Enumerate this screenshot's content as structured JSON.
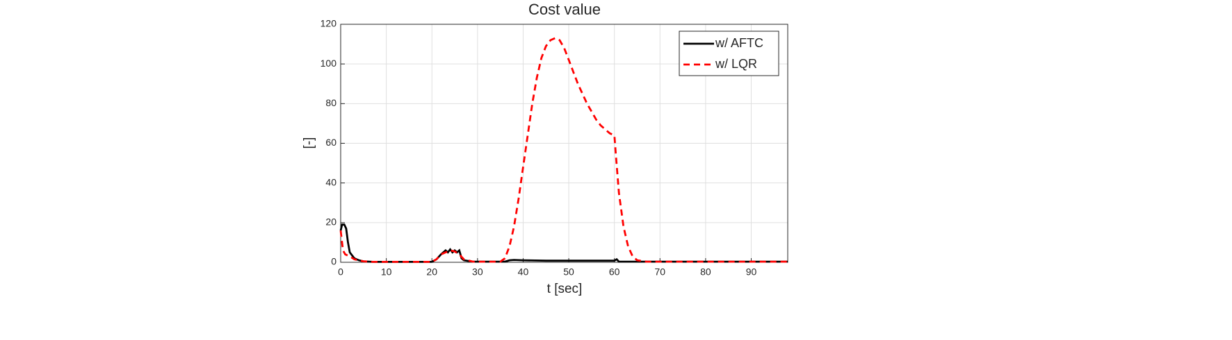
{
  "chart_data": {
    "type": "line",
    "title": "Cost value",
    "x_label": "t [sec]",
    "y_label": "[-]",
    "xlim": [
      0,
      98
    ],
    "ylim": [
      0,
      120
    ],
    "xticks": [
      0,
      10,
      20,
      30,
      40,
      50,
      60,
      70,
      80,
      90
    ],
    "yticks": [
      0,
      20,
      40,
      60,
      80,
      100,
      120
    ],
    "grid": true,
    "legend_position": "northeast",
    "series": [
      {
        "name": "w/ AFTC",
        "color": "#000000",
        "style": "solid",
        "x": [
          0,
          0.3,
          0.8,
          1.2,
          1.6,
          2,
          3,
          4,
          5,
          7,
          20,
          21,
          22,
          23,
          23.5,
          24,
          24.5,
          25,
          25.5,
          26,
          26.5,
          27,
          29,
          36,
          37,
          38,
          40,
          45,
          55,
          60,
          60.5,
          61,
          98
        ],
        "values": [
          16,
          19,
          19,
          17,
          10,
          5,
          2,
          1,
          0.5,
          0.2,
          0.2,
          1.5,
          4,
          6,
          5,
          6.5,
          5,
          6,
          5,
          6,
          2,
          1,
          0.3,
          0.3,
          1,
          1.2,
          1,
          0.8,
          0.8,
          0.8,
          1.5,
          0.3,
          0.3
        ]
      },
      {
        "name": "w/ LQR",
        "color": "#ff0000",
        "style": "dashed",
        "x": [
          0,
          0.5,
          1,
          2,
          3,
          5,
          7,
          20,
          21,
          22,
          23,
          24,
          25,
          26,
          27,
          29,
          35,
          36,
          37,
          38,
          39,
          40,
          41,
          42,
          43,
          44,
          45,
          46,
          47,
          48,
          49,
          50,
          51,
          52,
          53,
          54,
          55,
          56,
          57,
          58,
          59,
          60,
          60.3,
          61,
          62,
          63,
          64,
          65,
          67,
          98
        ],
        "values": [
          16,
          6,
          4,
          3,
          1.5,
          0.5,
          0.2,
          0.2,
          1.5,
          4,
          5,
          6,
          5.5,
          4,
          1.5,
          0.3,
          0.3,
          2,
          8,
          18,
          32,
          48,
          64,
          80,
          93,
          103,
          109,
          112,
          113,
          112,
          108,
          102,
          96,
          90,
          85,
          80,
          76,
          72,
          69,
          67,
          65,
          64,
          55,
          35,
          18,
          8,
          3,
          1,
          0.3,
          0.3
        ]
      }
    ]
  }
}
